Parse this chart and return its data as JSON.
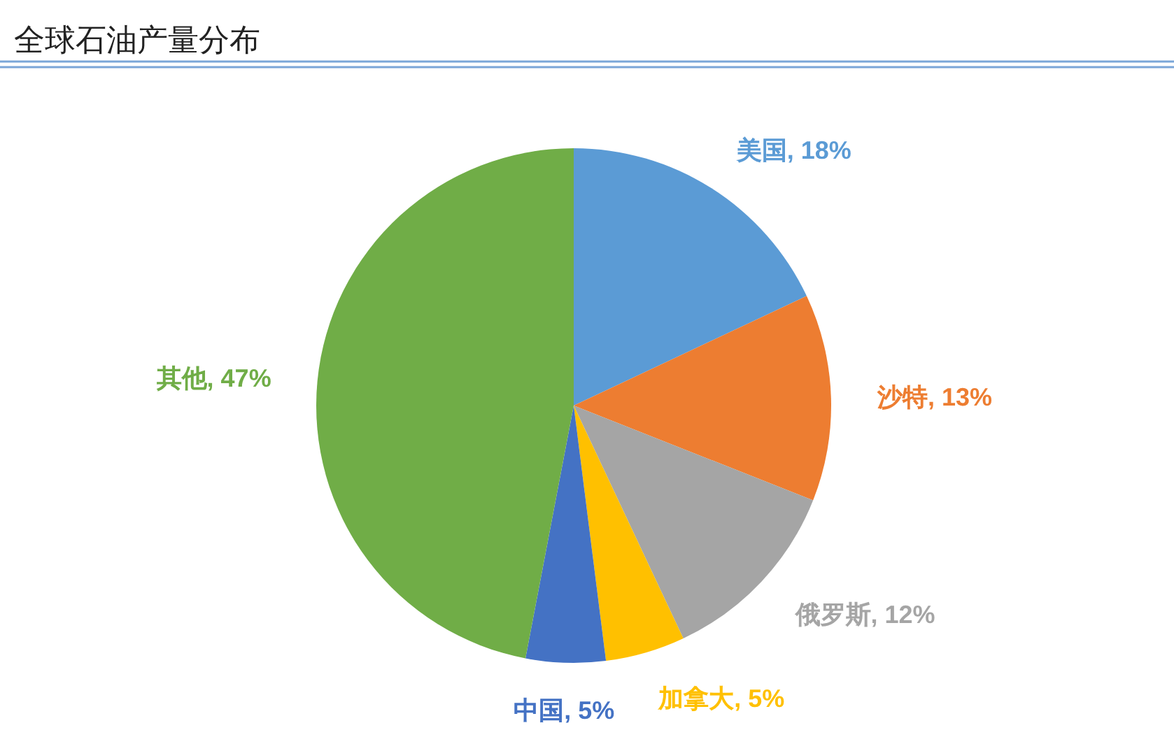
{
  "chart_data": {
    "type": "pie",
    "title": "全球石油产量分布",
    "categories": [
      "美国",
      "沙特",
      "俄罗斯",
      "加拿大",
      "中国",
      "其他"
    ],
    "values": [
      18,
      13,
      12,
      5,
      5,
      47
    ],
    "value_labels": [
      "18%",
      "13%",
      "12%",
      "5%",
      "5%",
      "47%"
    ],
    "colors": [
      "#5b9bd5",
      "#ed7d31",
      "#a5a5a5",
      "#ffc000",
      "#4472c4",
      "#70ad47"
    ]
  }
}
